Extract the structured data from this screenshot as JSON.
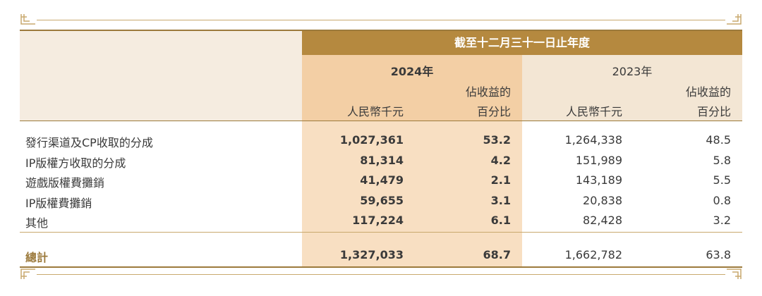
{
  "header": {
    "period": "截至十二月三十一日止年度",
    "year_2024": "2024年",
    "year_2023": "2023年",
    "col_rmb": "人民幣千元",
    "col_pct_line1": "佔收益的",
    "col_pct_line2": "百分比"
  },
  "rows": [
    {
      "label": "發行渠道及CP收取的分成",
      "v2024": "1,027,361",
      "p2024": "53.2",
      "v2023": "1,264,338",
      "p2023": "48.5"
    },
    {
      "label": "IP版權方收取的分成",
      "v2024": "81,314",
      "p2024": "4.2",
      "v2023": "151,989",
      "p2023": "5.8"
    },
    {
      "label": "遊戲版權費攤銷",
      "v2024": "41,479",
      "p2024": "2.1",
      "v2023": "143,189",
      "p2023": "5.5"
    },
    {
      "label": "IP版權費攤銷",
      "v2024": "59,655",
      "p2024": "3.1",
      "v2023": "20,838",
      "p2023": "0.8"
    },
    {
      "label": "其他",
      "v2024": "117,224",
      "p2024": "6.1",
      "v2023": "82,428",
      "p2023": "3.2"
    }
  ],
  "total": {
    "label": "總計",
    "v2024": "1,327,033",
    "p2024": "68.7",
    "v2023": "1,662,782",
    "p2023": "63.8"
  },
  "colors": {
    "header_band": "#b5893f",
    "highlight_2024": "#f8dfc2",
    "gold_text": "#9c7a3c",
    "text": "#3a3a3a"
  }
}
